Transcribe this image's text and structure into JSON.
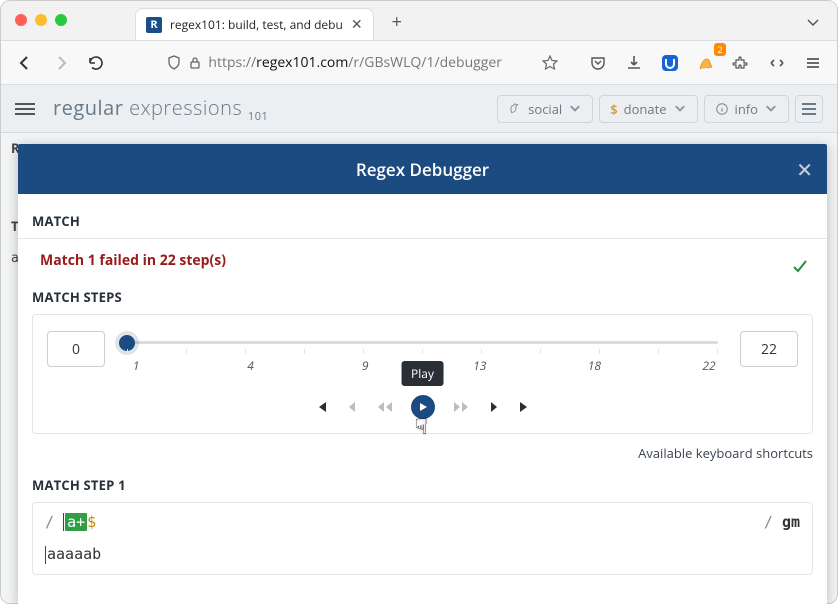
{
  "browser": {
    "tab_title": "regex101: build, test, and debu",
    "new_tab_glyph": "+",
    "url_prefix": "https://",
    "url_domain": "regex101.com",
    "url_path": "/r/GBsWLQ/1/debugger",
    "badge_count": "2"
  },
  "app": {
    "logo_a": "regular",
    "logo_b": "expressions",
    "logo_sub": "101",
    "social": "social",
    "donate": "donate",
    "info": "info"
  },
  "bg": {
    "r": "R",
    "t": "T",
    "a": "a"
  },
  "modal": {
    "title": "Regex Debugger",
    "match_label": "MATCH",
    "match_msg": "Match 1 failed in 22 step(s)",
    "steps_label": "MATCH STEPS",
    "current_step": "0",
    "max_step": "22",
    "tick_labels": [
      "1",
      "4",
      "9",
      "13",
      "18",
      "22"
    ],
    "tooltip": "Play",
    "cursor_glyph": "☟",
    "kb_shortcuts": "Available keyboard shortcuts",
    "step1_label": "MATCH STEP 1",
    "regex_slash": "/",
    "regex_hl": "a+",
    "regex_anchor": "$",
    "flags_slash": "/",
    "flags_text": "gm",
    "test_string": "aaaaab",
    "slider": {
      "thumb_pct": 0,
      "track_color": "#d9dde0",
      "thumb_color": "#1c4b82"
    }
  },
  "colors": {
    "modal_header": "#1c4b82",
    "fail_text": "#9a1b1b",
    "success_check": "#2e8a3b",
    "regex_highlight_bg": "#2f9e44",
    "anchor_color": "#c08c00"
  }
}
